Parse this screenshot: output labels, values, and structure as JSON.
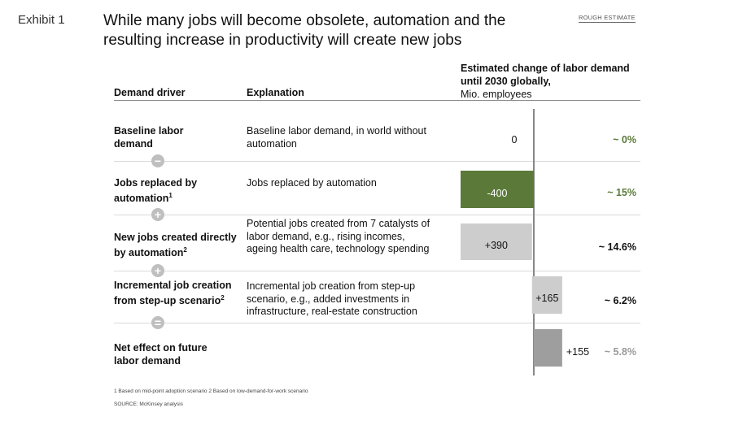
{
  "exhibit_label": "Exhibit 1",
  "title": "While many jobs will become obsolete, automation and the resulting increase in productivity will create new jobs",
  "rough_estimate": "ROUGH ESTIMATE",
  "headers": {
    "driver": "Demand driver",
    "explanation": "Explanation",
    "estimated_bold": "Estimated change of labor demand until 2030 globally,",
    "estimated_unit": "Mio. employees"
  },
  "rows": [
    {
      "driver": "Baseline labor demand",
      "explanation": "Baseline labor demand, in world without automation",
      "operator": "−"
    },
    {
      "driver": "Jobs replaced by automation",
      "driver_sup": "1",
      "explanation": "Jobs replaced by automation",
      "operator": "+"
    },
    {
      "driver": "New jobs created directly by automation",
      "driver_sup": "2",
      "explanation": "Potential jobs created from 7 catalysts of labor demand, e.g., rising incomes, ageing health care, technology spending",
      "operator": "+"
    },
    {
      "driver": "Incremental job creation from step-up scenario",
      "driver_sup": "2",
      "explanation": "Incremental job creation from step-up scenario, e.g., added investments in infrastructure, real-estate construction",
      "operator": "="
    },
    {
      "driver": "Net effect on future labor demand",
      "explanation": ""
    }
  ],
  "footnote": "1 Based on mid-point adoption scenario    2 Based on low-demand-for-work scenario",
  "source": "SOURCE: McKinsey analysis",
  "colors": {
    "green": "#5b7a3a",
    "light_gray": "#cdcdcd",
    "mid_gray": "#9e9e9e",
    "axis": "#888888",
    "pct_green": "#5b7a3a",
    "pct_gray": "#9a9a9a"
  },
  "chart_data": {
    "type": "waterfall",
    "unit": "Mio. employees",
    "categories": [
      "Baseline labor demand",
      "Jobs replaced by automation",
      "New jobs created directly by automation",
      "Incremental job creation from step-up scenario",
      "Net effect on future labor demand"
    ],
    "values": [
      0,
      -400,
      390,
      165,
      155
    ],
    "labels": [
      "0",
      "-400",
      "+390",
      "+165",
      "+155"
    ],
    "percent_labels": [
      "~ 0%",
      "~ 15%",
      "~ 14.6%",
      "~ 6.2%",
      "~ 5.8%"
    ],
    "bar_kinds": [
      "none",
      "decrease",
      "increase",
      "increase",
      "total"
    ],
    "xlim": [
      -400,
      165
    ]
  }
}
